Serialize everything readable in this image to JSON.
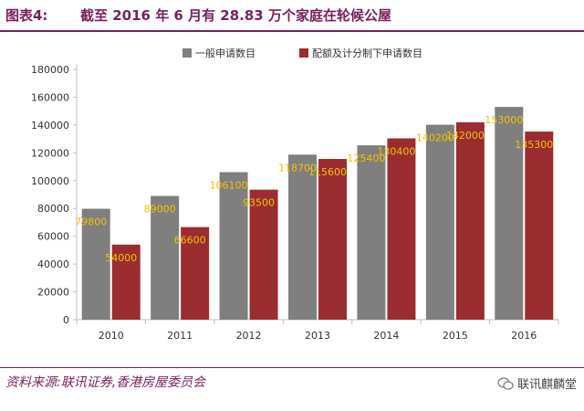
{
  "header": {
    "figure_label": "图表4:",
    "title": "截至 2016 年 6 月有 28.83 万个家庭在轮候公屋"
  },
  "footer": {
    "source": "资料来源:联讯证券,香港房屋委员会",
    "brand": "联讯麒麟堂",
    "brand_icon": "wechat-icon"
  },
  "colors": {
    "series_general": "#7f7f7f",
    "series_quota": "#9b2d30",
    "data_labels": "#f2c200",
    "header": "#7a1f5c"
  },
  "chart_data": {
    "type": "bar",
    "categories": [
      "2010",
      "2011",
      "2012",
      "2013",
      "2014",
      "2015",
      "2016"
    ],
    "series": [
      {
        "name": "一般申请数目",
        "values": [
          79800,
          89000,
          106100,
          118700,
          125400,
          140200,
          153000
        ]
      },
      {
        "name": "配额及计分制下申请数目",
        "values": [
          54000,
          66600,
          93500,
          115600,
          130400,
          142000,
          135300
        ]
      }
    ],
    "ylim": [
      0,
      180000
    ],
    "yticks": [
      "0",
      "20000",
      "40000",
      "60000",
      "80000",
      "100000",
      "120000",
      "140000",
      "160000",
      "180000"
    ],
    "data_labels": [
      [
        "79800",
        "89000",
        "106100",
        "118700",
        "125400",
        "140200",
        "153000"
      ],
      [
        "54000",
        "66600",
        "93500",
        "115600",
        "130400",
        "142000",
        "135300"
      ]
    ],
    "legend_position": "top",
    "grid": false
  }
}
